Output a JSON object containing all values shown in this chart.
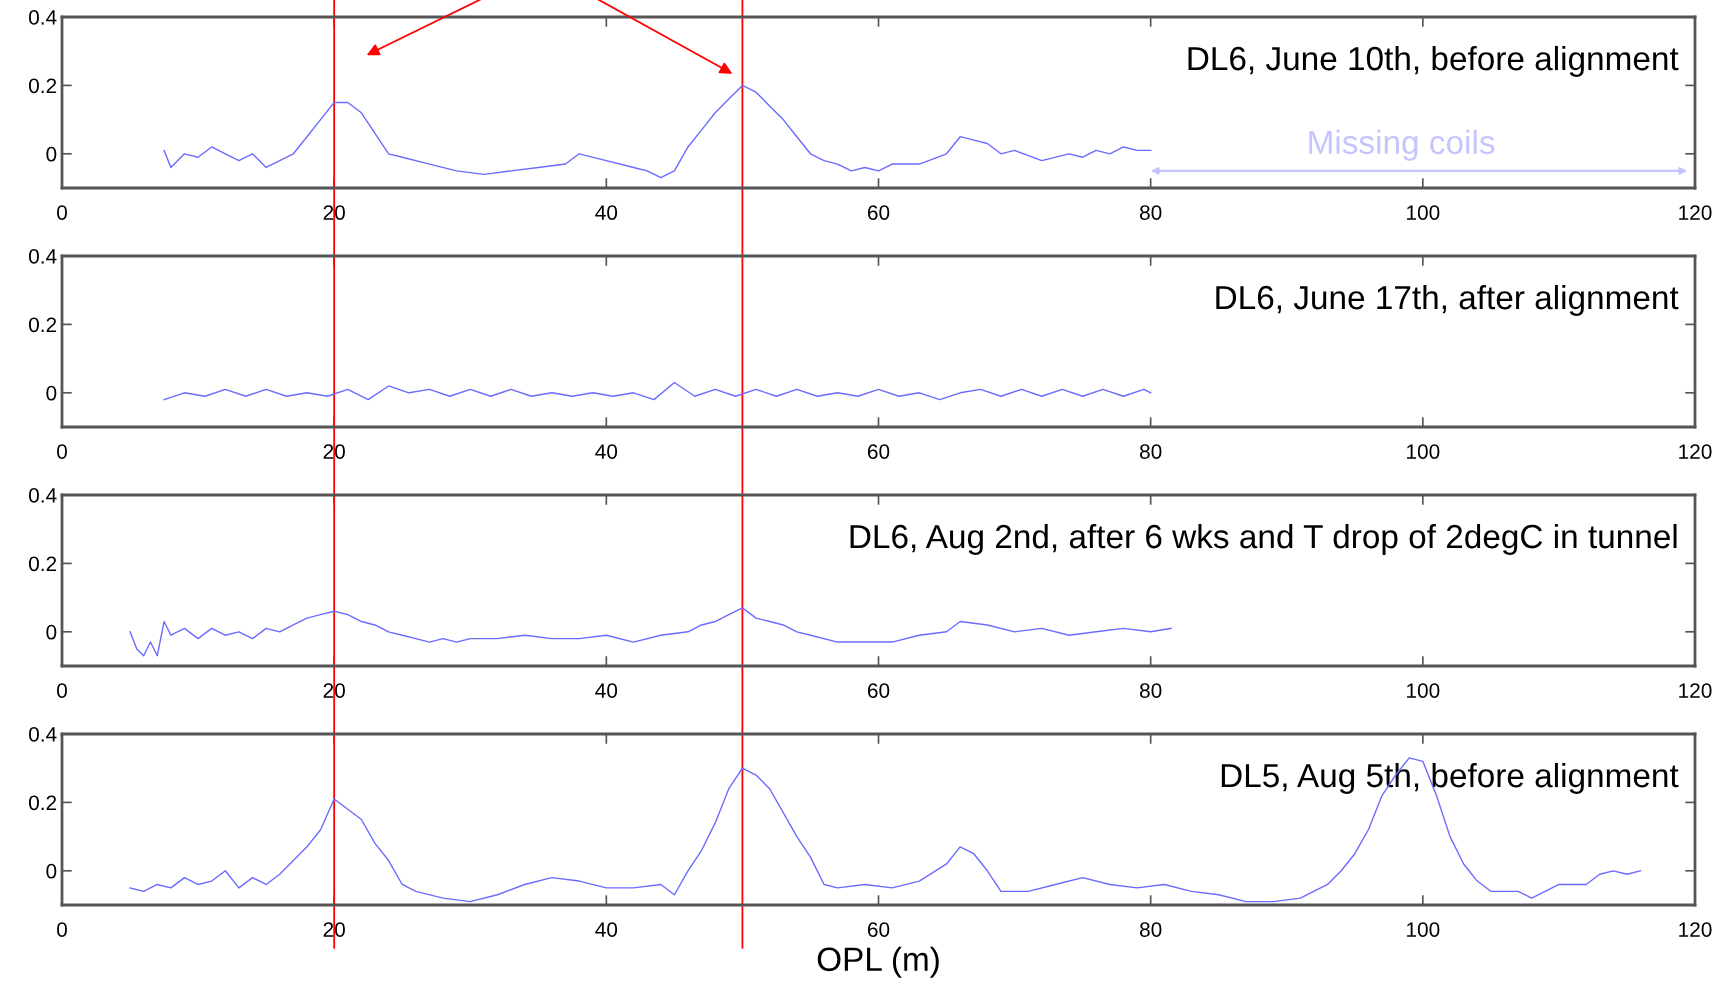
{
  "chart_data": [
    {
      "type": "line",
      "title": "DL6, June 10th, before alignment",
      "xlim": [
        0,
        120
      ],
      "ylim": [
        -0.1,
        0.4
      ],
      "xticks": [
        0,
        20,
        40,
        60,
        80,
        100,
        120
      ],
      "yticks": [
        0,
        0.2,
        0.4
      ],
      "grid": false,
      "legend": false,
      "annotations": [
        "Missing coils"
      ],
      "ref_lines": [
        {
          "axis": "x",
          "value": 20,
          "color": "#ff0000"
        },
        {
          "axis": "x",
          "value": 50,
          "color": "#ff0000"
        }
      ],
      "series": [
        {
          "color": "#6b6bff",
          "x": [
            7.5,
            8,
            9,
            10,
            11,
            12,
            13,
            14,
            15,
            16,
            17,
            18,
            19,
            20,
            21,
            22,
            23,
            24,
            25,
            27,
            29,
            31,
            33,
            35,
            37,
            38,
            40,
            42,
            43,
            44,
            45,
            46,
            47,
            48,
            49,
            50,
            51,
            52,
            53,
            54,
            55,
            56,
            57,
            58,
            59,
            60,
            61,
            63,
            65,
            66,
            67,
            68,
            69,
            70,
            72,
            74,
            75,
            76,
            77,
            78,
            79,
            80
          ],
          "values": [
            0.01,
            -0.04,
            0.0,
            -0.01,
            0.02,
            0.0,
            -0.02,
            0.0,
            -0.04,
            -0.02,
            0.0,
            0.05,
            0.1,
            0.15,
            0.15,
            0.12,
            0.06,
            0.0,
            -0.01,
            -0.03,
            -0.05,
            -0.06,
            -0.05,
            -0.04,
            -0.03,
            0.0,
            -0.02,
            -0.04,
            -0.05,
            -0.07,
            -0.05,
            0.02,
            0.07,
            0.12,
            0.16,
            0.2,
            0.18,
            0.14,
            0.1,
            0.05,
            0.0,
            -0.02,
            -0.03,
            -0.05,
            -0.04,
            -0.05,
            -0.03,
            -0.03,
            0.0,
            0.05,
            0.04,
            0.03,
            0.0,
            0.01,
            -0.02,
            0.0,
            -0.01,
            0.01,
            0.0,
            0.02,
            0.01,
            0.01
          ]
        }
      ]
    },
    {
      "type": "line",
      "title": "DL6, June 17th, after alignment",
      "xlim": [
        0,
        120
      ],
      "ylim": [
        -0.1,
        0.4
      ],
      "xticks": [
        0,
        20,
        40,
        60,
        80,
        100,
        120
      ],
      "yticks": [
        0,
        0.2,
        0.4
      ],
      "grid": false,
      "legend": false,
      "ref_lines": [
        {
          "axis": "x",
          "value": 20,
          "color": "#ff0000"
        },
        {
          "axis": "x",
          "value": 50,
          "color": "#ff0000"
        }
      ],
      "series": [
        {
          "color": "#6b6bff",
          "x": [
            7.5,
            9,
            10.5,
            12,
            13.5,
            15,
            16.5,
            18,
            19.5,
            21,
            22.5,
            24,
            25.5,
            27,
            28.5,
            30,
            31.5,
            33,
            34.5,
            36,
            37.5,
            39,
            40.5,
            42,
            43.5,
            45,
            46.5,
            48,
            49.5,
            51,
            52.5,
            54,
            55.5,
            57,
            58.5,
            60,
            61.5,
            63,
            64.5,
            66,
            67.5,
            69,
            70.5,
            72,
            73.5,
            75,
            76.5,
            78,
            79.5,
            80
          ],
          "values": [
            -0.02,
            0.0,
            -0.01,
            0.01,
            -0.01,
            0.01,
            -0.01,
            0.0,
            -0.01,
            0.01,
            -0.02,
            0.02,
            0.0,
            0.01,
            -0.01,
            0.01,
            -0.01,
            0.01,
            -0.01,
            0.0,
            -0.01,
            0.0,
            -0.01,
            0.0,
            -0.02,
            0.03,
            -0.01,
            0.01,
            -0.01,
            0.01,
            -0.01,
            0.01,
            -0.01,
            0.0,
            -0.01,
            0.01,
            -0.01,
            0.0,
            -0.02,
            0.0,
            0.01,
            -0.01,
            0.01,
            -0.01,
            0.01,
            -0.01,
            0.01,
            -0.01,
            0.01,
            0.0
          ]
        }
      ]
    },
    {
      "type": "line",
      "title": "DL6, Aug 2nd, after 6 wks and T drop of 2degC in tunnel",
      "xlim": [
        0,
        120
      ],
      "ylim": [
        -0.1,
        0.4
      ],
      "xticks": [
        0,
        20,
        40,
        60,
        80,
        100,
        120
      ],
      "yticks": [
        0,
        0.2,
        0.4
      ],
      "grid": false,
      "legend": false,
      "ref_lines": [
        {
          "axis": "x",
          "value": 20,
          "color": "#ff0000"
        },
        {
          "axis": "x",
          "value": 50,
          "color": "#ff0000"
        }
      ],
      "series": [
        {
          "color": "#6b6bff",
          "x": [
            5,
            5.5,
            6,
            6.5,
            7,
            7.5,
            8,
            9,
            10,
            11,
            12,
            13,
            14,
            15,
            16,
            17,
            18,
            19,
            20,
            21,
            22,
            23,
            24,
            25,
            26,
            27,
            28,
            29,
            30,
            32,
            34,
            36,
            38,
            40,
            42,
            44,
            46,
            47,
            48,
            49,
            50,
            51,
            52,
            53,
            54,
            55,
            57,
            59,
            61,
            63,
            65,
            66,
            68,
            70,
            72,
            74,
            76,
            78,
            80,
            81.5
          ],
          "values": [
            0.0,
            -0.05,
            -0.07,
            -0.03,
            -0.07,
            0.03,
            -0.01,
            0.01,
            -0.02,
            0.01,
            -0.01,
            0.0,
            -0.02,
            0.01,
            0.0,
            0.02,
            0.04,
            0.05,
            0.06,
            0.05,
            0.03,
            0.02,
            0.0,
            -0.01,
            -0.02,
            -0.03,
            -0.02,
            -0.03,
            -0.02,
            -0.02,
            -0.01,
            -0.02,
            -0.02,
            -0.01,
            -0.03,
            -0.01,
            0.0,
            0.02,
            0.03,
            0.05,
            0.07,
            0.04,
            0.03,
            0.02,
            0.0,
            -0.01,
            -0.03,
            -0.03,
            -0.03,
            -0.01,
            0.0,
            0.03,
            0.02,
            0.0,
            0.01,
            -0.01,
            0.0,
            0.01,
            0.0,
            0.01
          ]
        }
      ]
    },
    {
      "type": "line",
      "title": "DL5, Aug 5th, before alignment",
      "xlabel": "OPL (m)",
      "xlim": [
        0,
        120
      ],
      "ylim": [
        -0.1,
        0.4
      ],
      "xticks": [
        0,
        20,
        40,
        60,
        80,
        100,
        120
      ],
      "yticks": [
        0,
        0.2,
        0.4
      ],
      "grid": false,
      "legend": false,
      "ref_lines": [
        {
          "axis": "x",
          "value": 20,
          "color": "#ff0000"
        },
        {
          "axis": "x",
          "value": 50,
          "color": "#ff0000"
        }
      ],
      "series": [
        {
          "color": "#6b6bff",
          "x": [
            5,
            6,
            7,
            8,
            9,
            10,
            11,
            12,
            13,
            14,
            15,
            16,
            17,
            18,
            19,
            20,
            21,
            22,
            23,
            24,
            25,
            26,
            28,
            30,
            32,
            34,
            36,
            38,
            40,
            42,
            44,
            45,
            46,
            47,
            48,
            49,
            50,
            51,
            52,
            53,
            54,
            55,
            56,
            57,
            59,
            61,
            63,
            65,
            66,
            67,
            68,
            69,
            71,
            73,
            75,
            77,
            79,
            81,
            83,
            85,
            87,
            89,
            91,
            93,
            94,
            95,
            96,
            97,
            98,
            99,
            100,
            101,
            102,
            103,
            104,
            105,
            107,
            108,
            110,
            112,
            113,
            114,
            115,
            116
          ],
          "values": [
            -0.05,
            -0.06,
            -0.04,
            -0.05,
            -0.02,
            -0.04,
            -0.03,
            0.0,
            -0.05,
            -0.02,
            -0.04,
            -0.01,
            0.03,
            0.07,
            0.12,
            0.21,
            0.18,
            0.15,
            0.08,
            0.03,
            -0.04,
            -0.06,
            -0.08,
            -0.09,
            -0.07,
            -0.04,
            -0.02,
            -0.03,
            -0.05,
            -0.05,
            -0.04,
            -0.07,
            0.0,
            0.06,
            0.14,
            0.24,
            0.3,
            0.28,
            0.24,
            0.17,
            0.1,
            0.04,
            -0.04,
            -0.05,
            -0.04,
            -0.05,
            -0.03,
            0.02,
            0.07,
            0.05,
            0.0,
            -0.06,
            -0.06,
            -0.04,
            -0.02,
            -0.04,
            -0.05,
            -0.04,
            -0.06,
            -0.07,
            -0.09,
            -0.09,
            -0.08,
            -0.04,
            0.0,
            0.05,
            0.12,
            0.22,
            0.28,
            0.33,
            0.32,
            0.22,
            0.1,
            0.02,
            -0.03,
            -0.06,
            -0.06,
            -0.08,
            -0.04,
            -0.04,
            -0.01,
            0.0,
            -0.01,
            0.0
          ]
        }
      ]
    }
  ]
}
